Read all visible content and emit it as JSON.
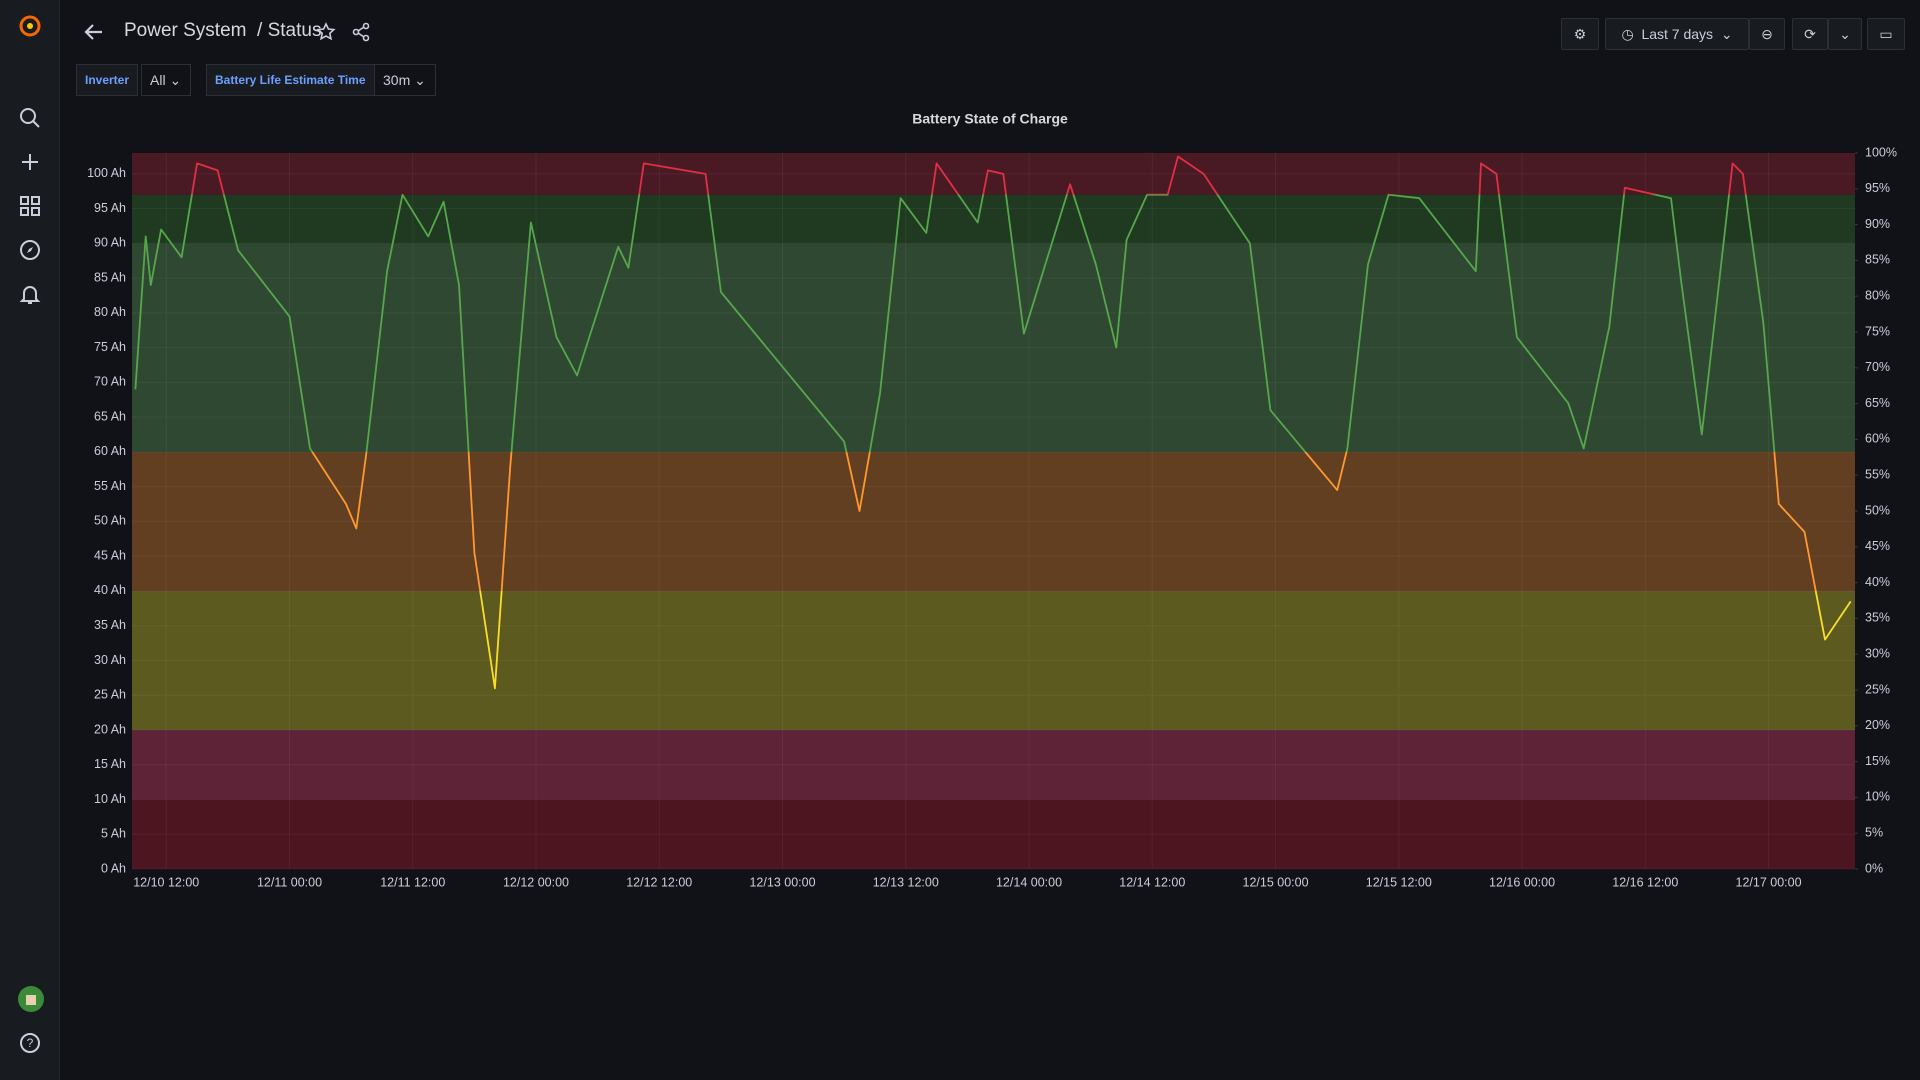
{
  "header": {
    "title": "Power System",
    "subtitle": "/ Status",
    "time_range": "Last 7 days"
  },
  "variables": [
    {
      "label": "Inverter",
      "value": "All"
    },
    {
      "label": "Battery Life Estimate Time",
      "value": "30m"
    }
  ],
  "chart_data": {
    "type": "line",
    "title": "Battery State of Charge",
    "x": [
      "12/10 09:00",
      "12/10 10:00",
      "12/10 10:30",
      "12/10 11:30",
      "12/10 13:30",
      "12/10 15:00",
      "12/10 17:00",
      "12/10 19:00",
      "12/11 00:00",
      "12/11 02:00",
      "12/11 05:30",
      "12/11 06:30",
      "12/11 07:30",
      "12/11 09:30",
      "12/11 11:00",
      "12/11 13:30",
      "12/11 15:00",
      "12/11 16:30",
      "12/11 18:00",
      "12/11 20:00",
      "12/11 21:30",
      "12/11 23:30",
      "12/12 02:00",
      "12/12 04:00",
      "12/12 08:00",
      "12/12 09:00",
      "12/12 10:30",
      "12/12 16:30",
      "12/12 18:00",
      "12/13 06:00",
      "12/13 07:30",
      "12/13 09:30",
      "12/13 11:30",
      "12/13 14:00",
      "12/13 15:00",
      "12/13 19:00",
      "12/13 20:00",
      "12/13 21:30",
      "12/13 23:30",
      "12/14 04:00",
      "12/14 06:30",
      "12/14 08:30",
      "12/14 09:30",
      "12/14 11:30",
      "12/14 13:30",
      "12/14 14:30",
      "12/14 17:00",
      "12/14 21:30",
      "12/14 23:30",
      "12/15 06:00",
      "12/15 07:00",
      "12/15 09:00",
      "12/15 11:00",
      "12/15 14:00",
      "12/15 19:30",
      "12/15 20:00",
      "12/15 21:30",
      "12/15 23:30",
      "12/16 04:30",
      "12/16 06:00",
      "12/16 08:30",
      "12/16 10:00",
      "12/16 14:30",
      "12/16 15:30",
      "12/16 17:30",
      "12/16 20:30",
      "12/16 21:30",
      "12/16 23:30",
      "12/17 01:00",
      "12/17 03:30",
      "12/17 05:30",
      "12/17 08:00"
    ],
    "values": [
      69,
      91,
      84,
      92,
      88,
      101.5,
      100.5,
      89,
      79.5,
      60.5,
      52.5,
      49,
      60,
      86,
      97,
      91,
      96,
      84,
      45.5,
      26,
      58,
      93,
      76.5,
      71,
      89.5,
      86.5,
      101.5,
      100,
      83,
      61.5,
      51.5,
      68.5,
      96.5,
      91.5,
      101.5,
      93,
      100.5,
      100,
      77,
      98.5,
      87,
      75,
      90.5,
      97,
      97,
      102.5,
      100,
      90,
      66,
      54.5,
      60.5,
      87,
      97,
      96.5,
      86,
      101.5,
      100,
      76.5,
      67,
      60.5,
      78,
      98,
      96.5,
      84.5,
      62.5,
      101.5,
      100,
      78.5,
      52.5,
      48.5,
      33,
      38.5
    ],
    "xlim": [
      "12/10 08:40",
      "12/17 08:25"
    ],
    "xticks": [
      "12/10 12:00",
      "12/11 00:00",
      "12/11 12:00",
      "12/12 00:00",
      "12/12 12:00",
      "12/13 00:00",
      "12/13 12:00",
      "12/14 00:00",
      "12/14 12:00",
      "12/15 00:00",
      "12/15 12:00",
      "12/16 00:00",
      "12/16 12:00",
      "12/17 00:00"
    ],
    "ylim": [
      0,
      103
    ],
    "yticks": [
      {
        "value": 0,
        "label": "0 Ah"
      },
      {
        "value": 5,
        "label": "5 Ah"
      },
      {
        "value": 10,
        "label": "10 Ah"
      },
      {
        "value": 15,
        "label": "15 Ah"
      },
      {
        "value": 20,
        "label": "20 Ah"
      },
      {
        "value": 25,
        "label": "25 Ah"
      },
      {
        "value": 30,
        "label": "30 Ah"
      },
      {
        "value": 35,
        "label": "35 Ah"
      },
      {
        "value": 40,
        "label": "40 Ah"
      },
      {
        "value": 45,
        "label": "45 Ah"
      },
      {
        "value": 50,
        "label": "50 Ah"
      },
      {
        "value": 55,
        "label": "55 Ah"
      },
      {
        "value": 60,
        "label": "60 Ah"
      },
      {
        "value": 65,
        "label": "65 Ah"
      },
      {
        "value": 70,
        "label": "70 Ah"
      },
      {
        "value": 75,
        "label": "75 Ah"
      },
      {
        "value": 80,
        "label": "80 Ah"
      },
      {
        "value": 85,
        "label": "85 Ah"
      },
      {
        "value": 90,
        "label": "90 Ah"
      },
      {
        "value": 95,
        "label": "95 Ah"
      },
      {
        "value": 100,
        "label": "100 Ah"
      }
    ],
    "y2lim": [
      0,
      100
    ],
    "y2ticks": [
      {
        "value": 0,
        "label": "0%"
      },
      {
        "value": 5,
        "label": "5%"
      },
      {
        "value": 10,
        "label": "10%"
      },
      {
        "value": 15,
        "label": "15%"
      },
      {
        "value": 20,
        "label": "20%"
      },
      {
        "value": 25,
        "label": "25%"
      },
      {
        "value": 30,
        "label": "30%"
      },
      {
        "value": 35,
        "label": "35%"
      },
      {
        "value": 40,
        "label": "40%"
      },
      {
        "value": 45,
        "label": "45%"
      },
      {
        "value": 50,
        "label": "50%"
      },
      {
        "value": 55,
        "label": "55%"
      },
      {
        "value": 60,
        "label": "60%"
      },
      {
        "value": 65,
        "label": "65%"
      },
      {
        "value": 70,
        "label": "70%"
      },
      {
        "value": 75,
        "label": "75%"
      },
      {
        "value": 80,
        "label": "80%"
      },
      {
        "value": 85,
        "label": "85%"
      },
      {
        "value": 90,
        "label": "90%"
      },
      {
        "value": 95,
        "label": "95%"
      },
      {
        "value": 100,
        "label": "100%"
      }
    ],
    "grid": true,
    "thresholds": [
      {
        "value": 0,
        "color": "#4d1520",
        "line_color": "#e02f44"
      },
      {
        "value": 10,
        "color": "#5e2336",
        "line_color": "#e02f44"
      },
      {
        "value": 20,
        "color": "#5d5a20",
        "line_color": "#fade2a"
      },
      {
        "value": 40,
        "color": "#623f20",
        "line_color": "#ff9830"
      },
      {
        "value": 60,
        "color": "#2f4831",
        "line_color": "#56a64b"
      },
      {
        "value": 90,
        "color": "#1f3a20",
        "line_color": "#56a64b"
      },
      {
        "value": 97,
        "color": "#4a1a24",
        "line_color": "#e02f44"
      }
    ]
  }
}
